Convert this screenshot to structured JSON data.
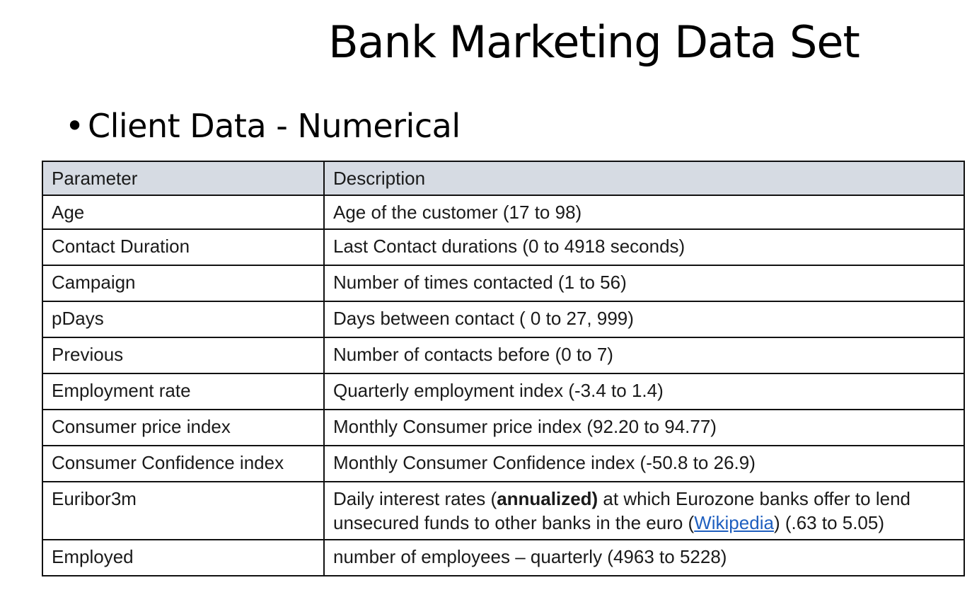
{
  "slide": {
    "title": "Bank Marketing Data Set",
    "bullet": "•",
    "subtitle": "Client Data - Numerical"
  },
  "table": {
    "headers": {
      "parameter": "Parameter",
      "description": "Description"
    },
    "rows": [
      {
        "parameter": "Age",
        "description": "Age of the customer (17 to 98)"
      },
      {
        "parameter": "Contact Duration",
        "description": "Last Contact durations (0 to 4918 seconds)"
      },
      {
        "parameter": "Campaign",
        "description": "Number of times contacted (1 to 56)"
      },
      {
        "parameter": "pDays",
        "description": "Days between contact ( 0 to 27, 999)"
      },
      {
        "parameter": "Previous",
        "description": "Number of contacts before (0 to 7)"
      },
      {
        "parameter": "Employment rate",
        "description": "Quarterly employment index (-3.4 to 1.4)"
      },
      {
        "parameter": "Consumer price index",
        "description": "Monthly Consumer price index (92.20 to 94.77)"
      },
      {
        "parameter": "Consumer Confidence index",
        "description": "Monthly Consumer Confidence index (-50.8 to 26.9)"
      },
      {
        "parameter": "Euribor3m",
        "description_parts": {
          "before_bold": "Daily interest rates (",
          "bold": "annualized)",
          "after_bold": " at which Eurozone banks offer to lend unsecured funds to other banks in the euro (",
          "link": "Wikipedia",
          "after_link": ") (.63 to 5.05)"
        }
      },
      {
        "parameter": "Employed",
        "description": "number of employees – quarterly (4963 to 5228)"
      }
    ]
  },
  "colors": {
    "header_background": "#d6dbe3",
    "link": "#1f5fbf",
    "border": "#111111"
  }
}
